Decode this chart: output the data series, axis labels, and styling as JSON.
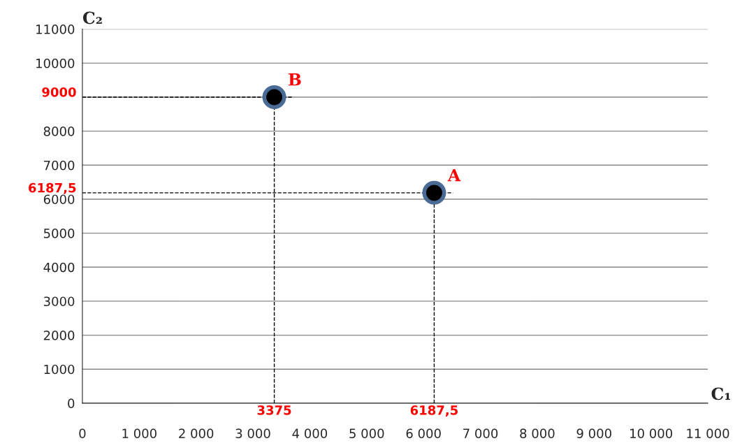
{
  "chart_data": {
    "type": "scatter",
    "xlabel": "C₁",
    "ylabel": "C₂",
    "x": [
      6187.5,
      3375
    ],
    "series": [
      {
        "color": "#000000",
        "values": [
          6187.5,
          9000
        ]
      }
    ],
    "marker": "circle",
    "annotations": [
      {
        "text": "A",
        "x": 6187.5,
        "y": 6187.5
      },
      {
        "text": "B",
        "x": 3375,
        "y": 9000
      }
    ],
    "ref_lines": [
      {
        "axis": "x",
        "value": 3375,
        "label": "3375",
        "line_style": "dashed"
      },
      {
        "axis": "x",
        "value": 6187.5,
        "label": "6187,5",
        "line_style": "dashed"
      },
      {
        "axis": "y",
        "value": 9000,
        "label": "9000",
        "line_style": "dashed"
      },
      {
        "axis": "y",
        "value": 6187.5,
        "label": "6187,5",
        "line_style": "dashed"
      }
    ],
    "xlim": [
      0,
      11000
    ],
    "ylim": [
      0,
      11000
    ],
    "xticks": [
      0,
      {
        "value": 1000,
        "label": "1 000"
      },
      {
        "value": 2000,
        "label": "2 000"
      },
      {
        "value": 3000,
        "label": "3 000"
      },
      {
        "value": 4000,
        "label": "4 000"
      },
      {
        "value": 5000,
        "label": "5 000"
      },
      {
        "value": 6000,
        "label": "6 000"
      },
      {
        "value": 7000,
        "label": "7 000"
      },
      {
        "value": 8000,
        "label": "8 000"
      },
      {
        "value": 9000,
        "label": "9 000"
      },
      {
        "value": 10000,
        "label": "10 000"
      },
      {
        "value": 11000,
        "label": "11 000"
      }
    ],
    "yticks": [
      0,
      1000,
      2000,
      3000,
      4000,
      5000,
      6000,
      7000,
      8000,
      {
        "value": 9000,
        "label": null
      },
      10000,
      11000
    ],
    "grid": "y"
  }
}
